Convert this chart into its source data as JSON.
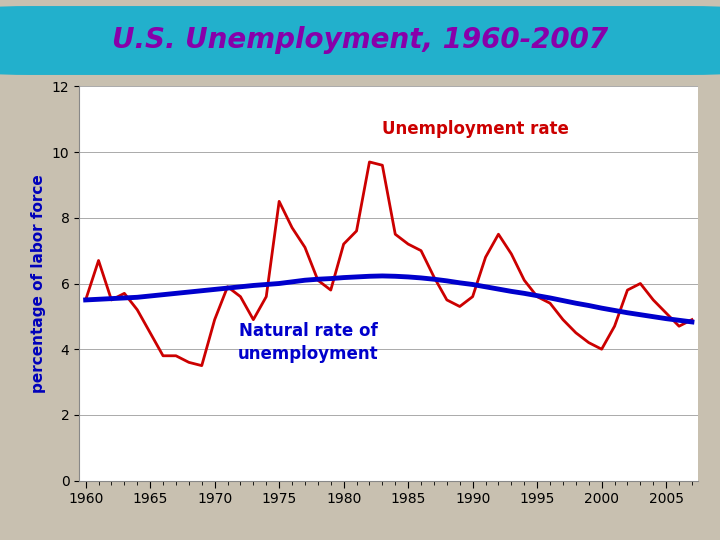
{
  "title": "U.S. Unemployment, 1960-2007",
  "ylabel": "percentage of labor force",
  "background_color": "#c8c0b0",
  "plot_bg": "#ffffff",
  "title_bg": "#22b0cc",
  "title_color": "#8800aa",
  "ylabel_color": "#0000bb",
  "unemployment_label": "Unemployment rate",
  "natural_label": "Natural rate of\nunemployment",
  "unemployment_color": "#cc0000",
  "natural_color": "#0000cc",
  "years": [
    1960,
    1961,
    1962,
    1963,
    1964,
    1965,
    1966,
    1967,
    1968,
    1969,
    1970,
    1971,
    1972,
    1973,
    1974,
    1975,
    1976,
    1977,
    1978,
    1979,
    1980,
    1981,
    1982,
    1983,
    1984,
    1985,
    1986,
    1987,
    1988,
    1989,
    1990,
    1991,
    1992,
    1993,
    1994,
    1995,
    1996,
    1997,
    1998,
    1999,
    2000,
    2001,
    2002,
    2003,
    2004,
    2005,
    2006,
    2007
  ],
  "unemployment": [
    5.5,
    6.7,
    5.5,
    5.7,
    5.2,
    4.5,
    3.8,
    3.8,
    3.6,
    3.5,
    4.9,
    5.9,
    5.6,
    4.9,
    5.6,
    8.5,
    7.7,
    7.1,
    6.1,
    5.8,
    7.2,
    7.6,
    9.7,
    9.6,
    7.5,
    7.2,
    7.0,
    6.2,
    5.5,
    5.3,
    5.6,
    6.8,
    7.5,
    6.9,
    6.1,
    5.6,
    5.4,
    4.9,
    4.5,
    4.2,
    4.0,
    4.7,
    5.8,
    6.0,
    5.5,
    5.1,
    4.7,
    4.9
  ],
  "natural": [
    5.5,
    5.52,
    5.54,
    5.56,
    5.58,
    5.62,
    5.66,
    5.7,
    5.74,
    5.78,
    5.82,
    5.86,
    5.9,
    5.94,
    5.97,
    6.0,
    6.05,
    6.1,
    6.13,
    6.15,
    6.18,
    6.2,
    6.22,
    6.23,
    6.22,
    6.2,
    6.17,
    6.13,
    6.08,
    6.02,
    5.97,
    5.9,
    5.83,
    5.76,
    5.7,
    5.63,
    5.56,
    5.48,
    5.4,
    5.33,
    5.25,
    5.18,
    5.11,
    5.05,
    4.99,
    4.93,
    4.88,
    4.83
  ],
  "ylim": [
    0,
    12
  ],
  "xlim": [
    1959.5,
    2007.5
  ],
  "yticks": [
    0,
    2,
    4,
    6,
    8,
    10,
    12
  ],
  "xticks": [
    1960,
    1965,
    1970,
    1975,
    1980,
    1985,
    1990,
    1995,
    2000,
    2005
  ]
}
